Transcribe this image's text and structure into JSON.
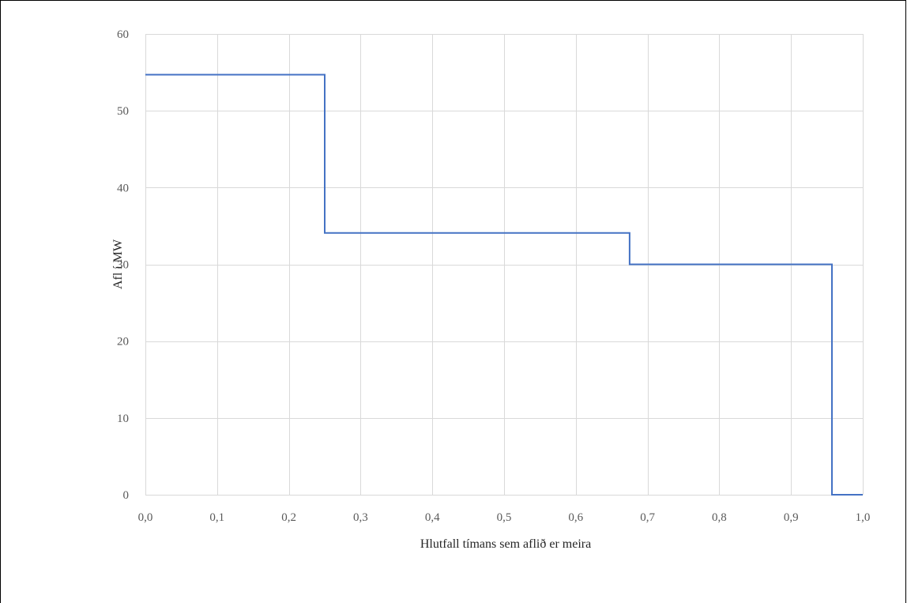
{
  "chart_data": {
    "type": "line",
    "step": true,
    "xlabel": "Hlutfall tímans sem aflið er meira",
    "ylabel": "Afl í MW",
    "xlim": [
      0,
      1
    ],
    "ylim": [
      0,
      60
    ],
    "x_ticks": [
      "0,0",
      "0,1",
      "0,2",
      "0,3",
      "0,4",
      "0,5",
      "0,6",
      "0,7",
      "0,8",
      "0,9",
      "1,0"
    ],
    "y_ticks": [
      "0",
      "10",
      "20",
      "30",
      "40",
      "50",
      "60"
    ],
    "grid": true,
    "series": [
      {
        "color": "#4472c4",
        "points": [
          [
            0.0,
            54.7
          ],
          [
            0.25,
            54.7
          ],
          [
            0.25,
            34.1
          ],
          [
            0.675,
            34.1
          ],
          [
            0.675,
            30.0
          ],
          [
            0.957,
            30.0
          ],
          [
            0.957,
            0.0
          ],
          [
            1.0,
            0.0
          ]
        ]
      }
    ]
  }
}
